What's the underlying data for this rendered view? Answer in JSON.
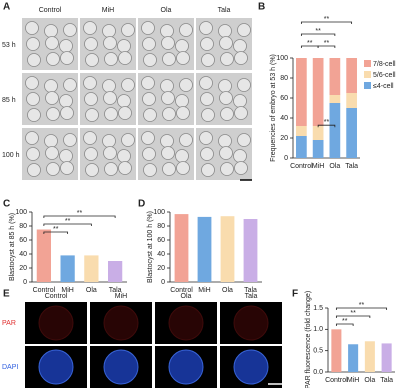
{
  "figure": {
    "panels": [
      "A",
      "B",
      "C",
      "D",
      "E",
      "F"
    ],
    "a_columns": [
      "Control",
      "MiH",
      "Ola",
      "Tala"
    ],
    "a_rows": [
      "53 h",
      "85 h",
      "100 h"
    ],
    "e_columns": [
      "Control",
      "MiH",
      "Ola",
      "Tala"
    ],
    "e_rows": [
      "PAR",
      "DAPI"
    ]
  },
  "chart_data": [
    {
      "type": "bar",
      "stacked": true,
      "y_label": "Frequencies of embryo at 53 h (%)",
      "categories": [
        "Control",
        "MiH",
        "Ola",
        "Tala"
      ],
      "series": [
        {
          "name": "≤4-cell",
          "color": "#6fa8e0",
          "values": [
            22,
            18,
            55,
            50
          ]
        },
        {
          "name": "5/6-cell",
          "color": "#f9dcae",
          "values": [
            10,
            14,
            8,
            15
          ]
        },
        {
          "name": "7/8-cell",
          "color": "#f2a395",
          "values": [
            68,
            68,
            37,
            35
          ]
        }
      ],
      "ylim": [
        0,
        100
      ],
      "yticks": [
        0,
        20,
        40,
        60,
        80,
        100
      ],
      "annotations": [
        "**",
        "**",
        "**",
        "**",
        "**"
      ]
    },
    {
      "type": "bar",
      "y_label": "Blastocyst at 85 h (%)",
      "categories": [
        "Control",
        "MiH",
        "Ola",
        "Tala"
      ],
      "values": [
        75,
        38,
        38,
        30
      ],
      "colors": [
        "#f2a395",
        "#6fa8e0",
        "#f9dcae",
        "#c9aee6"
      ],
      "ylim": [
        0,
        100
      ],
      "yticks": [
        0,
        20,
        40,
        60,
        80,
        100
      ],
      "annotations": [
        "**",
        "**",
        "**"
      ]
    },
    {
      "type": "bar",
      "y_label": "Blastocyst at 100 h (%)",
      "categories": [
        "Control",
        "MiH",
        "Ola",
        "Tala"
      ],
      "values": [
        97,
        93,
        94,
        90
      ],
      "colors": [
        "#f2a395",
        "#6fa8e0",
        "#f9dcae",
        "#c9aee6"
      ],
      "ylim": [
        0,
        100
      ],
      "yticks": [
        0,
        20,
        40,
        60,
        80,
        100
      ]
    },
    {
      "type": "bar",
      "y_label": "PAR fluorescence (fold change)",
      "categories": [
        "Control",
        "MiH",
        "Ola",
        "Tala"
      ],
      "values": [
        1.0,
        0.65,
        0.72,
        0.67
      ],
      "colors": [
        "#f2a395",
        "#6fa8e0",
        "#f9dcae",
        "#c9aee6"
      ],
      "ylim": [
        0,
        1.5
      ],
      "yticks": [
        {
          "value": 0,
          "label": "0.0"
        },
        {
          "value": 0.5,
          "label": "0.5"
        },
        {
          "value": 1.0,
          "label": "1.0"
        },
        {
          "value": 1.5,
          "label": "1.5"
        }
      ],
      "annotations": [
        "**",
        "**",
        "**"
      ]
    }
  ]
}
